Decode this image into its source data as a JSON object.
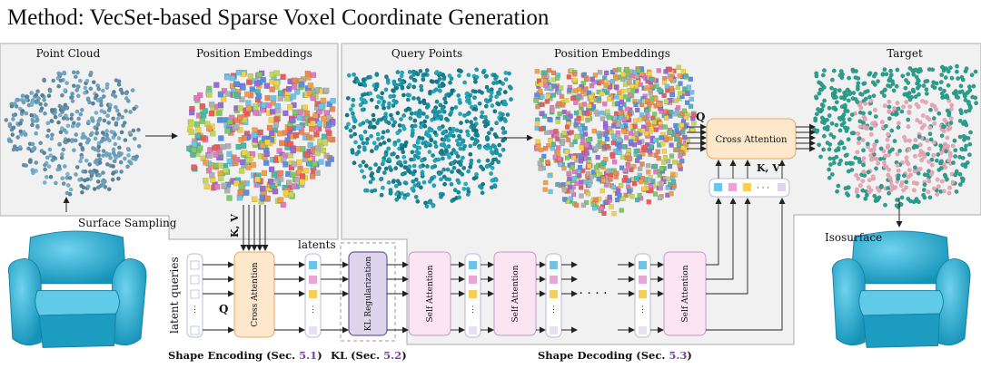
{
  "title": "Method: VecSet-based Sparse Voxel Coordinate Generation",
  "panels": {
    "point_cloud": "Point Cloud",
    "position_embeddings_left": "Position Embeddings",
    "query_points": "Query Points",
    "position_embeddings_right": "Position Embeddings",
    "target": "Target"
  },
  "labels": {
    "surface_sampling": "Surface Sampling",
    "kv_encoder": "K, V",
    "kv_decoder": "K, V",
    "q_encoder": "Q",
    "q_decoder": "Q",
    "latents": "latents",
    "latent_queries": "latent queries",
    "isosurface": "Isosurface",
    "dots": "· · · ·",
    "vdots": "·\n·\n·"
  },
  "blocks": {
    "cross_attention_encoder": "Cross Attention",
    "kl_regularization": "KL Regularization",
    "self_attention": "Self Attention",
    "cross_attention_decoder": "Cross Attention"
  },
  "sections": {
    "shape_encoding": "Shape Encoding (Sec. ",
    "shape_encoding_num": "5.1",
    "kl": "KL (Sec. ",
    "kl_num": "5.2",
    "shape_decoding": "Shape Decoding (Sec. ",
    "shape_decoding_num": "5.3",
    "close": ")"
  },
  "colors": {
    "panel_bg": "#f0f0f0",
    "panel_border": "#aaaaaa",
    "cross_attn_fill": "#fde8cc",
    "cross_attn_stroke": "#e8a766",
    "kl_fill": "#ddd5ec",
    "kl_stroke": "#6f5a9a",
    "self_attn_fill": "#fbe5f3",
    "self_attn_stroke": "#c49bc4",
    "section_number": "#7b3fa0",
    "point_cloud": "#8ab4cc",
    "teal_points": "#26a4b4",
    "target_teal": "#2a9f8c",
    "target_pink": "#e8a5b5",
    "chair": "#33b4d6"
  }
}
